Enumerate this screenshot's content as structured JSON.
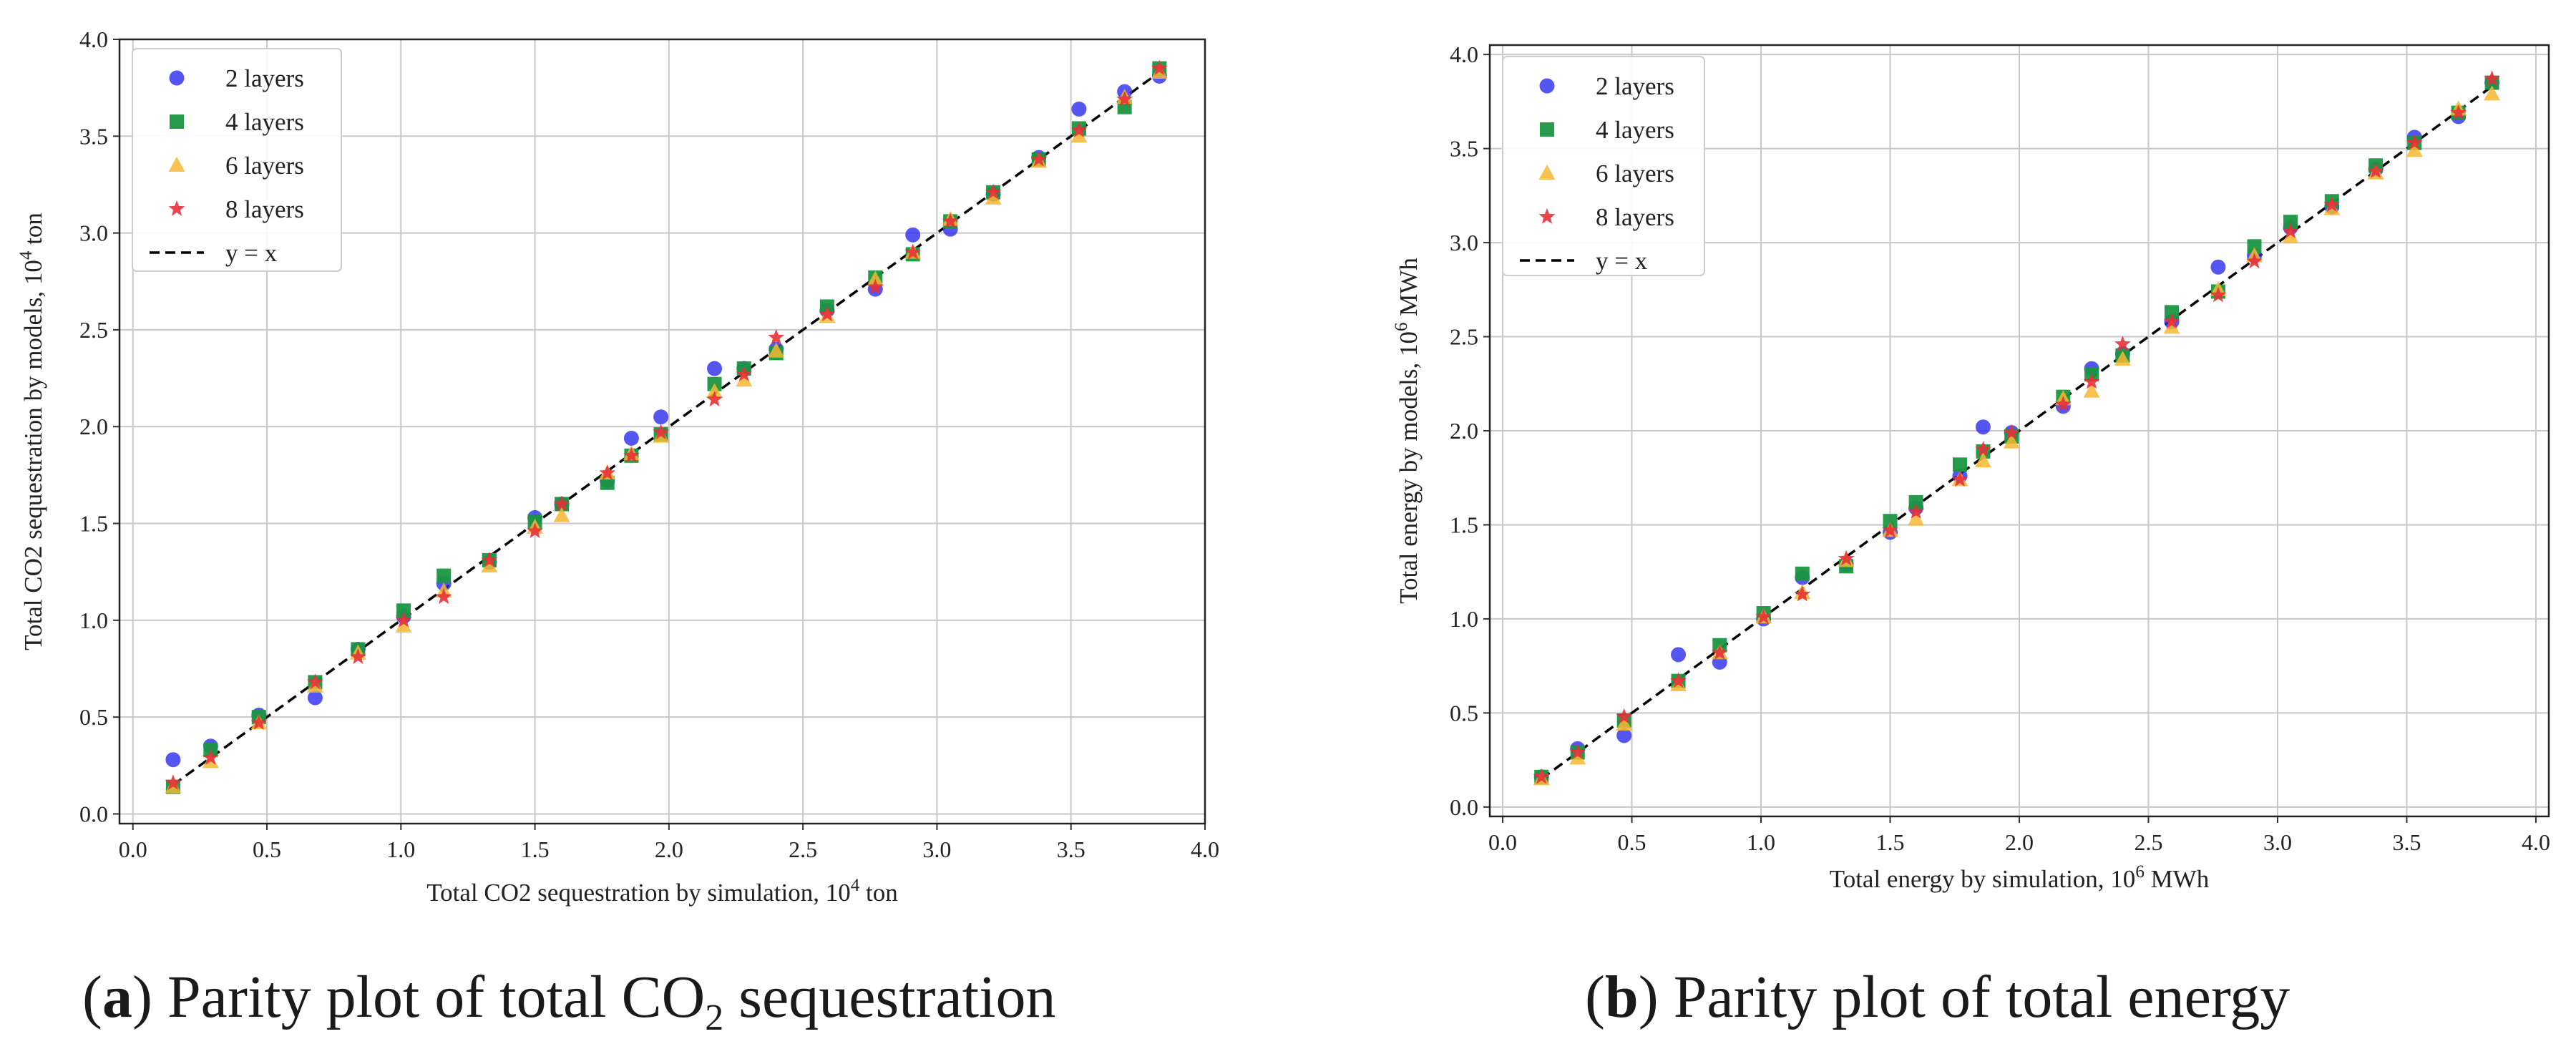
{
  "chart_data": [
    {
      "type": "scatter",
      "panel": "a",
      "xlabel_prefix": "Total CO2 sequestration by simulation, 10",
      "xlabel_exp": "4",
      "xlabel_suffix": " ton",
      "ylabel_prefix": "Total CO2 sequestration by models, 10",
      "ylabel_exp": "4",
      "ylabel_suffix": " ton",
      "xlim": [
        -0.05,
        4.0
      ],
      "ylim": [
        -0.05,
        4.0
      ],
      "xticks": [
        "0.0",
        "0.5",
        "1.0",
        "1.5",
        "2.0",
        "2.5",
        "3.0",
        "3.5",
        "4.0"
      ],
      "yticks": [
        "0.0",
        "0.5",
        "1.0",
        "1.5",
        "2.0",
        "2.5",
        "3.0",
        "3.5",
        "4.0"
      ],
      "grid": true,
      "legend_position": "top-left",
      "x": [
        0.15,
        0.29,
        0.47,
        0.68,
        0.84,
        1.01,
        1.16,
        1.33,
        1.5,
        1.6,
        1.77,
        1.86,
        1.97,
        2.17,
        2.28,
        2.4,
        2.59,
        2.77,
        2.91,
        3.05,
        3.21,
        3.38,
        3.53,
        3.7,
        3.83
      ],
      "series": [
        {
          "name": "2 layers",
          "marker": "circle",
          "color": "#2b2bef",
          "values": [
            0.28,
            0.35,
            0.51,
            0.6,
            0.85,
            1.02,
            1.19,
            1.3,
            1.53,
            1.6,
            1.72,
            1.94,
            2.05,
            2.3,
            2.3,
            2.4,
            2.6,
            2.71,
            2.99,
            3.02,
            3.2,
            3.39,
            3.64,
            3.73,
            3.81
          ]
        },
        {
          "name": "4 layers",
          "marker": "square",
          "color": "#1a9641",
          "values": [
            0.14,
            0.33,
            0.5,
            0.68,
            0.85,
            1.05,
            1.23,
            1.31,
            1.51,
            1.6,
            1.71,
            1.85,
            1.96,
            2.22,
            2.3,
            2.38,
            2.62,
            2.77,
            2.89,
            3.06,
            3.21,
            3.38,
            3.54,
            3.65,
            3.85
          ]
        },
        {
          "name": "6 layers",
          "marker": "triangle",
          "color": "#f7b731",
          "values": [
            0.14,
            0.27,
            0.47,
            0.66,
            0.83,
            0.97,
            1.15,
            1.28,
            1.48,
            1.54,
            1.76,
            1.86,
            1.95,
            2.18,
            2.24,
            2.39,
            2.57,
            2.76,
            2.9,
            3.07,
            3.18,
            3.37,
            3.5,
            3.7,
            3.83
          ]
        },
        {
          "name": "8 layers",
          "marker": "star",
          "color": "#e8303a",
          "values": [
            0.16,
            0.29,
            0.47,
            0.68,
            0.81,
            1.0,
            1.12,
            1.31,
            1.46,
            1.6,
            1.76,
            1.85,
            1.97,
            2.14,
            2.27,
            2.46,
            2.58,
            2.72,
            2.9,
            3.06,
            3.21,
            3.38,
            3.53,
            3.69,
            3.85
          ]
        }
      ],
      "reference_line": {
        "name": "y = x",
        "style": "dashed",
        "color": "#000000"
      }
    },
    {
      "type": "scatter",
      "panel": "b",
      "xlabel_prefix": "Total energy by simulation, 10",
      "xlabel_exp": "6",
      "xlabel_suffix": " MWh",
      "ylabel_prefix": "Total energy by models, 10",
      "ylabel_exp": "6",
      "ylabel_suffix": " MWh",
      "xlim": [
        -0.05,
        4.05
      ],
      "ylim": [
        -0.05,
        4.05
      ],
      "xticks": [
        "0.0",
        "0.5",
        "1.0",
        "1.5",
        "2.0",
        "2.5",
        "3.0",
        "3.5",
        "4.0"
      ],
      "yticks": [
        "0.0",
        "0.5",
        "1.0",
        "1.5",
        "2.0",
        "2.5",
        "3.0",
        "3.5",
        "4.0"
      ],
      "grid": true,
      "legend_position": "top-left",
      "x": [
        0.15,
        0.29,
        0.47,
        0.68,
        0.84,
        1.01,
        1.16,
        1.33,
        1.5,
        1.6,
        1.77,
        1.86,
        1.97,
        2.17,
        2.28,
        2.4,
        2.59,
        2.77,
        2.91,
        3.05,
        3.21,
        3.38,
        3.53,
        3.7,
        3.83
      ],
      "series": [
        {
          "name": "2 layers",
          "marker": "circle",
          "color": "#2b2bef",
          "values": [
            0.16,
            0.31,
            0.38,
            0.81,
            0.77,
            1.0,
            1.22,
            1.29,
            1.46,
            1.59,
            1.76,
            2.02,
            1.99,
            2.13,
            2.33,
            2.41,
            2.58,
            2.87,
            2.93,
            3.08,
            3.19,
            3.39,
            3.56,
            3.67,
            3.85
          ]
        },
        {
          "name": "4 layers",
          "marker": "square",
          "color": "#1a9641",
          "values": [
            0.16,
            0.29,
            0.46,
            0.67,
            0.86,
            1.03,
            1.24,
            1.28,
            1.52,
            1.62,
            1.82,
            1.89,
            1.97,
            2.18,
            2.3,
            2.4,
            2.63,
            2.74,
            2.98,
            3.11,
            3.22,
            3.41,
            3.53,
            3.69,
            3.85
          ]
        },
        {
          "name": "6 layers",
          "marker": "triangle",
          "color": "#f7b731",
          "values": [
            0.15,
            0.26,
            0.44,
            0.65,
            0.82,
            1.01,
            1.14,
            1.31,
            1.47,
            1.53,
            1.74,
            1.84,
            1.94,
            2.17,
            2.21,
            2.38,
            2.55,
            2.75,
            2.93,
            3.03,
            3.18,
            3.37,
            3.49,
            3.71,
            3.79
          ]
        },
        {
          "name": "8 layers",
          "marker": "star",
          "color": "#e8303a",
          "values": [
            0.16,
            0.29,
            0.48,
            0.67,
            0.82,
            1.01,
            1.13,
            1.32,
            1.47,
            1.57,
            1.74,
            1.9,
            1.99,
            2.14,
            2.26,
            2.46,
            2.58,
            2.72,
            2.9,
            3.06,
            3.2,
            3.38,
            3.53,
            3.69,
            3.87
          ]
        }
      ],
      "reference_line": {
        "name": "y = x",
        "style": "dashed",
        "color": "#000000"
      }
    }
  ],
  "captions": {
    "a": {
      "letter": "a",
      "text_before": " Parity plot of total CO",
      "subscript": "2",
      "text_after": " sequestration"
    },
    "b": {
      "letter": "b",
      "text": " Parity plot of total energy"
    }
  }
}
